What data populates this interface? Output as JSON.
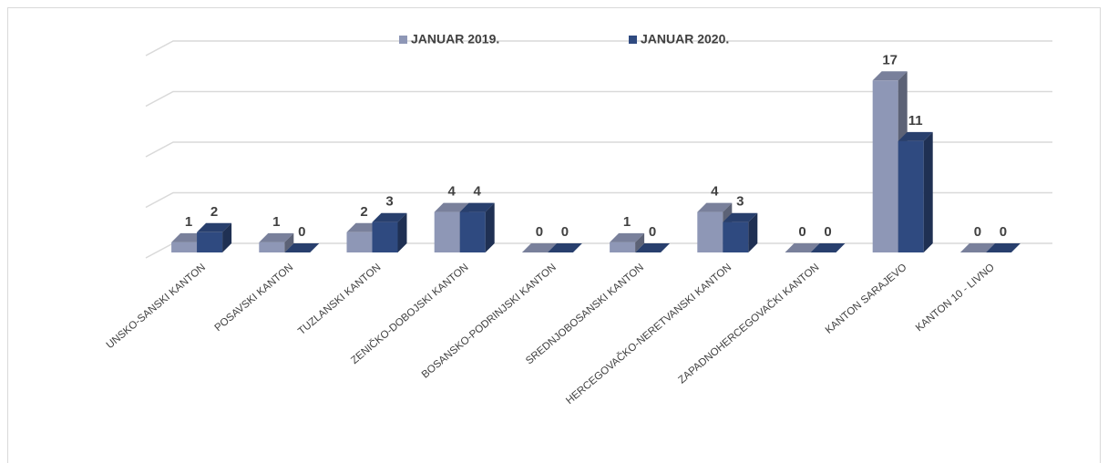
{
  "chart_data": {
    "type": "bar3d",
    "categories": [
      "UNSKO-SANSKI KANTON",
      "POSAVSKI KANTON",
      "TUZLANSKI KANTON",
      "ZENIČKO-DOBOJSKI KANTON",
      "BOSANSKO-PODRINJSKI KANTON",
      "SREDNJOBOSANSKI KANTON",
      "HERCEGOVAČKO-NERETVANSKI KANTON",
      "ZAPADNOHERCEGOVAČKI KANTON",
      "KANTON SARAJEVO",
      "KANTON 10 - LIVNO"
    ],
    "series": [
      {
        "name": "JANUAR 2019.",
        "color": "#8e97b6",
        "values": [
          1,
          1,
          2,
          4,
          0,
          1,
          4,
          0,
          17,
          0
        ]
      },
      {
        "name": "JANUAR 2020.",
        "color": "#2f4a80",
        "values": [
          2,
          0,
          3,
          4,
          0,
          0,
          3,
          0,
          11,
          0
        ]
      }
    ],
    "ylim": [
      0,
      20
    ],
    "yticks": [
      0,
      5,
      10,
      15,
      20
    ],
    "grid": true,
    "legend": "top"
  }
}
